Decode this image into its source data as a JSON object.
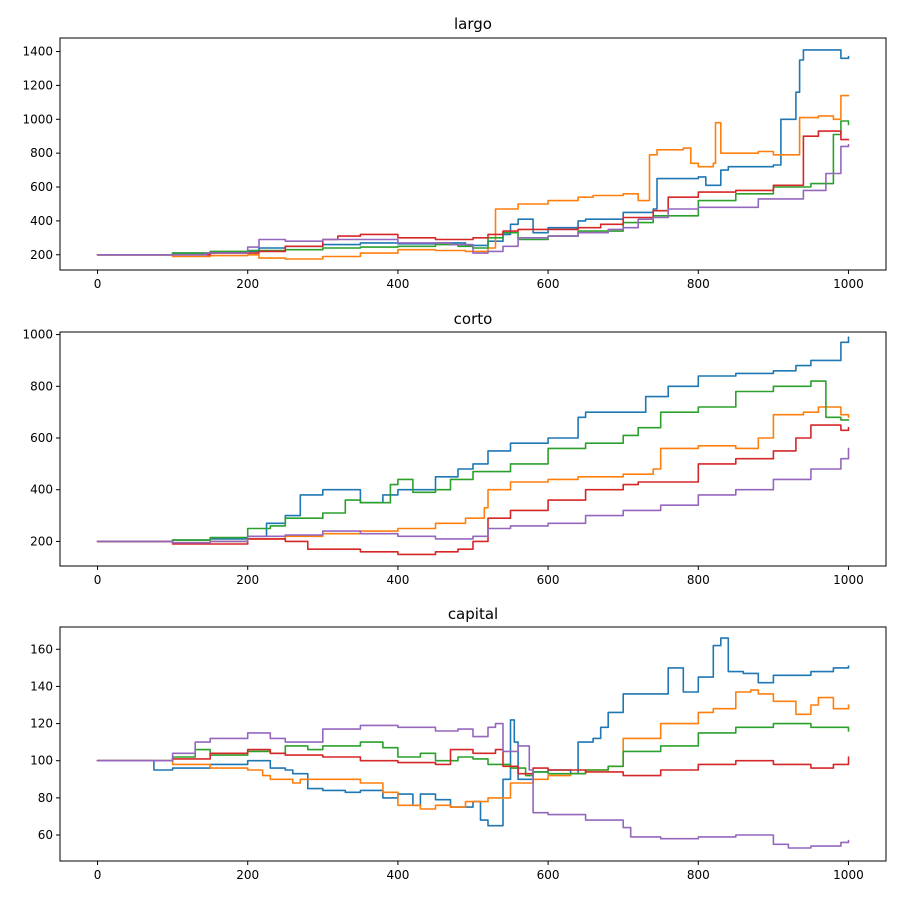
{
  "chart_data": [
    {
      "type": "line",
      "title": "largo",
      "xlabel": "",
      "ylabel": "",
      "xlim": [
        -50,
        1050
      ],
      "ylim": [
        110,
        1480
      ],
      "xticks": [
        0,
        200,
        400,
        600,
        800,
        1000
      ],
      "yticks": [
        200,
        400,
        600,
        800,
        1000,
        1200,
        1400
      ],
      "grid": false,
      "series": [
        {
          "color": "#1f77b4",
          "x": [
            0,
            70,
            100,
            150,
            200,
            215,
            250,
            300,
            350,
            400,
            450,
            490,
            520,
            540,
            550,
            560,
            580,
            600,
            640,
            650,
            700,
            740,
            745,
            800,
            810,
            830,
            840,
            880,
            900,
            910,
            930,
            935,
            940,
            960,
            980,
            990,
            1000
          ],
          "y": [
            200,
            200,
            210,
            215,
            220,
            240,
            250,
            260,
            270,
            265,
            270,
            255,
            280,
            320,
            380,
            410,
            330,
            360,
            400,
            410,
            450,
            470,
            650,
            660,
            610,
            700,
            720,
            720,
            730,
            1000,
            1160,
            1350,
            1410,
            1410,
            1410,
            1360,
            1370
          ]
        },
        {
          "color": "#ff7f0e",
          "x": [
            0,
            60,
            100,
            150,
            200,
            215,
            250,
            300,
            350,
            400,
            450,
            490,
            520,
            530,
            560,
            600,
            640,
            660,
            700,
            720,
            735,
            745,
            780,
            790,
            800,
            820,
            823,
            830,
            850,
            870,
            880,
            900,
            935,
            960,
            980,
            990,
            1000
          ],
          "y": [
            200,
            200,
            190,
            195,
            200,
            180,
            175,
            190,
            210,
            230,
            225,
            220,
            240,
            470,
            500,
            520,
            540,
            550,
            560,
            520,
            790,
            820,
            830,
            740,
            720,
            740,
            980,
            800,
            800,
            800,
            810,
            790,
            1010,
            1020,
            1000,
            1140,
            1140
          ]
        },
        {
          "color": "#2ca02c",
          "x": [
            0,
            70,
            100,
            150,
            200,
            250,
            300,
            350,
            400,
            450,
            480,
            500,
            520,
            540,
            560,
            600,
            640,
            700,
            740,
            800,
            850,
            900,
            950,
            980,
            990,
            1000
          ],
          "y": [
            200,
            200,
            210,
            220,
            225,
            230,
            240,
            245,
            250,
            260,
            250,
            240,
            300,
            330,
            290,
            310,
            340,
            390,
            430,
            520,
            560,
            600,
            620,
            910,
            990,
            970
          ]
        },
        {
          "color": "#d62728",
          "x": [
            0,
            60,
            100,
            150,
            200,
            215,
            250,
            300,
            320,
            350,
            400,
            430,
            450,
            500,
            520,
            540,
            560,
            600,
            640,
            670,
            700,
            740,
            760,
            800,
            850,
            900,
            940,
            960,
            990,
            1000
          ],
          "y": [
            200,
            200,
            200,
            210,
            210,
            220,
            250,
            290,
            310,
            320,
            300,
            300,
            290,
            300,
            320,
            340,
            350,
            350,
            360,
            380,
            420,
            460,
            540,
            570,
            580,
            610,
            900,
            930,
            880,
            880
          ]
        },
        {
          "color": "#9467bd",
          "x": [
            0,
            70,
            100,
            145,
            200,
            215,
            250,
            300,
            350,
            400,
            450,
            470,
            500,
            520,
            540,
            560,
            600,
            640,
            680,
            700,
            720,
            740,
            760,
            800,
            860,
            880,
            930,
            940,
            970,
            990,
            1000
          ],
          "y": [
            200,
            200,
            200,
            210,
            245,
            290,
            280,
            290,
            290,
            270,
            270,
            260,
            210,
            220,
            250,
            300,
            310,
            330,
            350,
            360,
            410,
            420,
            470,
            480,
            480,
            530,
            530,
            580,
            680,
            840,
            850
          ]
        }
      ]
    },
    {
      "type": "line",
      "title": "corto",
      "xlabel": "",
      "ylabel": "",
      "xlim": [
        -50,
        1050
      ],
      "ylim": [
        105,
        1010
      ],
      "xticks": [
        0,
        200,
        400,
        600,
        800,
        1000
      ],
      "yticks": [
        200,
        400,
        600,
        800,
        1000
      ],
      "grid": false,
      "series": [
        {
          "color": "#1f77b4",
          "x": [
            0,
            70,
            100,
            150,
            200,
            225,
            250,
            270,
            300,
            350,
            380,
            400,
            450,
            480,
            500,
            520,
            550,
            600,
            640,
            650,
            700,
            730,
            760,
            800,
            850,
            900,
            930,
            950,
            990,
            1000
          ],
          "y": [
            200,
            200,
            205,
            210,
            220,
            270,
            300,
            380,
            400,
            350,
            380,
            400,
            450,
            480,
            500,
            550,
            580,
            600,
            680,
            700,
            700,
            760,
            800,
            840,
            850,
            860,
            880,
            900,
            970,
            990
          ]
        },
        {
          "color": "#ff7f0e",
          "x": [
            0,
            70,
            100,
            150,
            200,
            250,
            300,
            350,
            400,
            450,
            490,
            515,
            520,
            550,
            600,
            640,
            700,
            740,
            750,
            800,
            850,
            880,
            900,
            930,
            940,
            960,
            990,
            1000
          ],
          "y": [
            200,
            200,
            195,
            200,
            210,
            220,
            230,
            240,
            250,
            270,
            290,
            330,
            400,
            430,
            440,
            450,
            460,
            480,
            560,
            570,
            560,
            600,
            690,
            690,
            700,
            720,
            690,
            680
          ]
        },
        {
          "color": "#2ca02c",
          "x": [
            0,
            70,
            100,
            150,
            200,
            230,
            250,
            300,
            330,
            350,
            390,
            400,
            420,
            450,
            470,
            500,
            550,
            600,
            650,
            700,
            720,
            750,
            800,
            850,
            900,
            930,
            950,
            970,
            990,
            1000
          ],
          "y": [
            200,
            200,
            205,
            215,
            250,
            260,
            290,
            310,
            360,
            350,
            420,
            440,
            390,
            400,
            440,
            470,
            500,
            560,
            580,
            610,
            640,
            700,
            720,
            780,
            800,
            800,
            820,
            680,
            670,
            670
          ]
        },
        {
          "color": "#d62728",
          "x": [
            0,
            70,
            100,
            150,
            200,
            250,
            280,
            300,
            350,
            400,
            450,
            480,
            500,
            520,
            550,
            600,
            650,
            700,
            720,
            800,
            850,
            900,
            930,
            950,
            990,
            1000
          ],
          "y": [
            200,
            200,
            190,
            190,
            210,
            200,
            170,
            170,
            160,
            150,
            160,
            170,
            200,
            290,
            320,
            360,
            400,
            420,
            430,
            500,
            520,
            550,
            600,
            650,
            630,
            640
          ]
        },
        {
          "color": "#9467bd",
          "x": [
            0,
            70,
            100,
            150,
            200,
            250,
            300,
            350,
            400,
            450,
            500,
            520,
            550,
            600,
            650,
            700,
            750,
            800,
            850,
            900,
            950,
            990,
            1000
          ],
          "y": [
            200,
            200,
            195,
            200,
            220,
            225,
            240,
            230,
            220,
            210,
            220,
            250,
            260,
            270,
            300,
            320,
            340,
            380,
            400,
            440,
            480,
            520,
            560
          ]
        }
      ]
    },
    {
      "type": "line",
      "title": "capital",
      "xlabel": "",
      "ylabel": "",
      "xlim": [
        -50,
        1050
      ],
      "ylim": [
        46,
        172
      ],
      "xticks": [
        0,
        200,
        400,
        600,
        800,
        1000
      ],
      "yticks": [
        60,
        80,
        100,
        120,
        140,
        160
      ],
      "grid": false,
      "series": [
        {
          "color": "#1f77b4",
          "x": [
            0,
            65,
            75,
            100,
            150,
            200,
            230,
            250,
            260,
            280,
            300,
            330,
            350,
            380,
            400,
            420,
            430,
            450,
            470,
            500,
            510,
            520,
            540,
            550,
            555,
            560,
            580,
            600,
            630,
            640,
            660,
            670,
            680,
            700,
            760,
            780,
            800,
            820,
            830,
            840,
            850,
            860,
            880,
            900,
            950,
            980,
            1000
          ],
          "y": [
            100,
            100,
            95,
            96,
            98,
            100,
            96,
            95,
            93,
            85,
            84,
            83,
            84,
            80,
            82,
            76,
            82,
            79,
            75,
            78,
            68,
            65,
            90,
            122,
            110,
            90,
            94,
            95,
            93,
            110,
            112,
            118,
            126,
            136,
            150,
            137,
            145,
            162,
            166,
            148,
            148,
            147,
            142,
            146,
            148,
            150,
            151
          ]
        },
        {
          "color": "#ff7f0e",
          "x": [
            0,
            65,
            100,
            150,
            200,
            220,
            230,
            260,
            270,
            300,
            350,
            380,
            400,
            430,
            450,
            470,
            490,
            520,
            550,
            580,
            600,
            630,
            650,
            680,
            700,
            750,
            800,
            820,
            850,
            870,
            880,
            900,
            930,
            950,
            960,
            980,
            1000
          ],
          "y": [
            100,
            100,
            98,
            96,
            95,
            92,
            90,
            88,
            90,
            90,
            88,
            83,
            76,
            74,
            76,
            75,
            78,
            80,
            88,
            90,
            92,
            93,
            95,
            97,
            112,
            120,
            126,
            128,
            137,
            138,
            136,
            132,
            125,
            130,
            134,
            128,
            130
          ]
        },
        {
          "color": "#2ca02c",
          "x": [
            0,
            65,
            100,
            130,
            150,
            200,
            230,
            250,
            280,
            300,
            350,
            380,
            400,
            430,
            450,
            480,
            500,
            520,
            550,
            570,
            580,
            600,
            650,
            680,
            700,
            750,
            800,
            850,
            900,
            950,
            1000
          ],
          "y": [
            100,
            100,
            102,
            106,
            103,
            105,
            104,
            108,
            106,
            108,
            110,
            107,
            102,
            104,
            100,
            102,
            101,
            98,
            96,
            92,
            94,
            93,
            95,
            97,
            105,
            108,
            115,
            118,
            120,
            118,
            116
          ]
        },
        {
          "color": "#d62728",
          "x": [
            0,
            65,
            100,
            150,
            200,
            230,
            250,
            300,
            350,
            400,
            450,
            470,
            500,
            530,
            540,
            560,
            580,
            600,
            650,
            700,
            750,
            800,
            850,
            900,
            950,
            980,
            1000
          ],
          "y": [
            100,
            100,
            101,
            104,
            106,
            104,
            103,
            102,
            100,
            99,
            98,
            106,
            104,
            106,
            97,
            93,
            96,
            95,
            94,
            92,
            95,
            98,
            100,
            98,
            96,
            98,
            102
          ]
        },
        {
          "color": "#9467bd",
          "x": [
            0,
            70,
            100,
            130,
            150,
            200,
            230,
            250,
            300,
            350,
            400,
            450,
            480,
            500,
            520,
            530,
            540,
            560,
            575,
            580,
            600,
            650,
            700,
            710,
            750,
            800,
            850,
            900,
            920,
            950,
            990,
            1000
          ],
          "y": [
            100,
            100,
            104,
            110,
            112,
            115,
            112,
            110,
            117,
            119,
            118,
            116,
            117,
            113,
            118,
            120,
            105,
            108,
            95,
            72,
            71,
            68,
            64,
            59,
            58,
            59,
            60,
            55,
            53,
            54,
            56,
            57
          ]
        }
      ]
    }
  ]
}
